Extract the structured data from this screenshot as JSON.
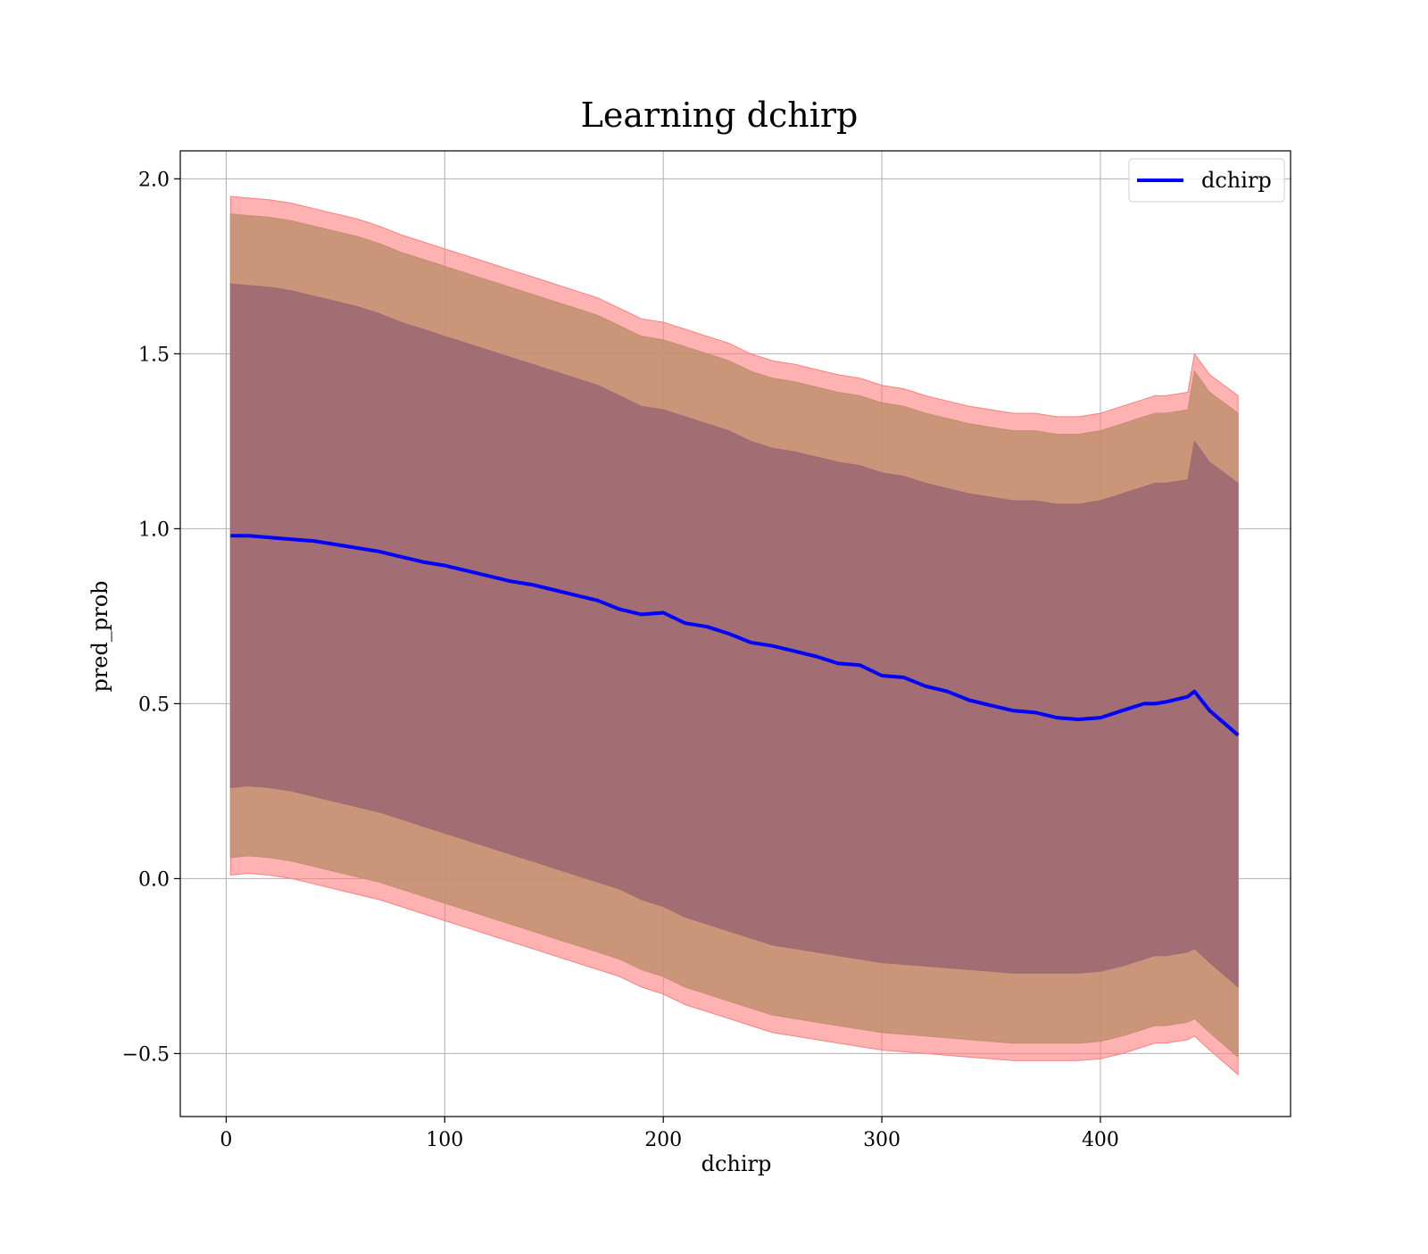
{
  "chart_data": {
    "type": "area",
    "title": "Learning dchirp",
    "xlabel": "dchirp",
    "ylabel": "pred_prob",
    "xlim": [
      -21,
      487
    ],
    "ylim": [
      -0.68,
      2.08
    ],
    "xticks": [
      0,
      100,
      200,
      300,
      400
    ],
    "xtick_labels": [
      "0",
      "100",
      "200",
      "300",
      "400"
    ],
    "yticks": [
      -0.5,
      0.0,
      0.5,
      1.0,
      1.5,
      2.0
    ],
    "ytick_labels": [
      "−0.5",
      "0.0",
      "0.5",
      "1.0",
      "1.5",
      "2.0"
    ],
    "grid": true,
    "legend": {
      "placement": "top-right",
      "entries": [
        "dchirp"
      ]
    },
    "colors": {
      "line": "#0000ff",
      "band_3sigma": "#ff7f7f",
      "band_2sigma": "#c18f6f",
      "band_1sigma": "#9f6b73",
      "grid": "#b0b0b0"
    },
    "x": [
      2,
      10,
      20,
      30,
      40,
      50,
      60,
      70,
      80,
      90,
      100,
      110,
      120,
      130,
      140,
      150,
      160,
      170,
      180,
      190,
      200,
      210,
      220,
      230,
      240,
      250,
      260,
      270,
      280,
      290,
      300,
      310,
      320,
      330,
      340,
      350,
      360,
      370,
      380,
      390,
      400,
      410,
      420,
      425,
      430,
      440,
      443,
      450,
      463
    ],
    "series": [
      {
        "name": "dchirp",
        "values": [
          0.98,
          0.98,
          0.975,
          0.97,
          0.965,
          0.955,
          0.945,
          0.935,
          0.92,
          0.905,
          0.895,
          0.88,
          0.865,
          0.85,
          0.84,
          0.825,
          0.81,
          0.795,
          0.77,
          0.755,
          0.76,
          0.73,
          0.72,
          0.7,
          0.675,
          0.665,
          0.65,
          0.635,
          0.615,
          0.61,
          0.58,
          0.575,
          0.55,
          0.535,
          0.51,
          0.495,
          0.48,
          0.475,
          0.46,
          0.455,
          0.46,
          0.48,
          0.5,
          0.5,
          0.505,
          0.52,
          0.535,
          0.48,
          0.41
        ]
      }
    ],
    "bands": [
      {
        "level": "3-sigma",
        "upper": [
          1.95,
          1.945,
          1.94,
          1.93,
          1.915,
          1.9,
          1.885,
          1.865,
          1.84,
          1.82,
          1.8,
          1.78,
          1.76,
          1.74,
          1.72,
          1.7,
          1.68,
          1.66,
          1.63,
          1.6,
          1.59,
          1.57,
          1.55,
          1.53,
          1.5,
          1.48,
          1.47,
          1.455,
          1.44,
          1.43,
          1.41,
          1.4,
          1.38,
          1.365,
          1.35,
          1.34,
          1.33,
          1.33,
          1.32,
          1.32,
          1.33,
          1.35,
          1.37,
          1.38,
          1.38,
          1.39,
          1.5,
          1.44,
          1.38
        ],
        "lower": [
          0.01,
          0.015,
          0.01,
          0.0,
          -0.015,
          -0.03,
          -0.045,
          -0.06,
          -0.08,
          -0.1,
          -0.12,
          -0.14,
          -0.16,
          -0.18,
          -0.2,
          -0.22,
          -0.24,
          -0.26,
          -0.28,
          -0.31,
          -0.33,
          -0.36,
          -0.38,
          -0.4,
          -0.42,
          -0.44,
          -0.45,
          -0.46,
          -0.47,
          -0.48,
          -0.49,
          -0.495,
          -0.5,
          -0.505,
          -0.51,
          -0.515,
          -0.52,
          -0.52,
          -0.52,
          -0.52,
          -0.515,
          -0.5,
          -0.48,
          -0.47,
          -0.47,
          -0.46,
          -0.45,
          -0.49,
          -0.56
        ]
      },
      {
        "level": "2-sigma",
        "upper": [
          1.9,
          1.895,
          1.89,
          1.88,
          1.865,
          1.85,
          1.835,
          1.815,
          1.79,
          1.77,
          1.75,
          1.73,
          1.71,
          1.69,
          1.67,
          1.65,
          1.63,
          1.61,
          1.58,
          1.55,
          1.54,
          1.52,
          1.5,
          1.48,
          1.45,
          1.43,
          1.42,
          1.405,
          1.39,
          1.38,
          1.36,
          1.35,
          1.33,
          1.315,
          1.3,
          1.29,
          1.28,
          1.28,
          1.27,
          1.27,
          1.28,
          1.3,
          1.32,
          1.33,
          1.33,
          1.34,
          1.45,
          1.39,
          1.33
        ],
        "lower": [
          0.06,
          0.065,
          0.06,
          0.05,
          0.035,
          0.02,
          0.005,
          -0.01,
          -0.03,
          -0.05,
          -0.07,
          -0.09,
          -0.11,
          -0.13,
          -0.15,
          -0.17,
          -0.19,
          -0.21,
          -0.23,
          -0.26,
          -0.28,
          -0.31,
          -0.33,
          -0.35,
          -0.37,
          -0.39,
          -0.4,
          -0.41,
          -0.42,
          -0.43,
          -0.44,
          -0.445,
          -0.45,
          -0.455,
          -0.46,
          -0.465,
          -0.47,
          -0.47,
          -0.47,
          -0.47,
          -0.465,
          -0.45,
          -0.43,
          -0.42,
          -0.42,
          -0.41,
          -0.4,
          -0.44,
          -0.51
        ]
      },
      {
        "level": "1-sigma",
        "upper": [
          1.7,
          1.695,
          1.69,
          1.68,
          1.665,
          1.65,
          1.635,
          1.615,
          1.59,
          1.57,
          1.55,
          1.53,
          1.51,
          1.49,
          1.47,
          1.45,
          1.43,
          1.41,
          1.38,
          1.35,
          1.34,
          1.32,
          1.3,
          1.28,
          1.25,
          1.23,
          1.22,
          1.205,
          1.19,
          1.18,
          1.16,
          1.15,
          1.13,
          1.115,
          1.1,
          1.09,
          1.08,
          1.08,
          1.07,
          1.07,
          1.08,
          1.1,
          1.12,
          1.13,
          1.13,
          1.14,
          1.25,
          1.19,
          1.13
        ],
        "lower": [
          0.26,
          0.265,
          0.26,
          0.25,
          0.235,
          0.22,
          0.205,
          0.19,
          0.17,
          0.15,
          0.13,
          0.11,
          0.09,
          0.07,
          0.05,
          0.03,
          0.01,
          -0.01,
          -0.03,
          -0.06,
          -0.08,
          -0.11,
          -0.13,
          -0.15,
          -0.17,
          -0.19,
          -0.2,
          -0.21,
          -0.22,
          -0.23,
          -0.24,
          -0.245,
          -0.25,
          -0.255,
          -0.26,
          -0.265,
          -0.27,
          -0.27,
          -0.27,
          -0.27,
          -0.265,
          -0.25,
          -0.23,
          -0.22,
          -0.22,
          -0.21,
          -0.2,
          -0.24,
          -0.31
        ]
      }
    ]
  }
}
